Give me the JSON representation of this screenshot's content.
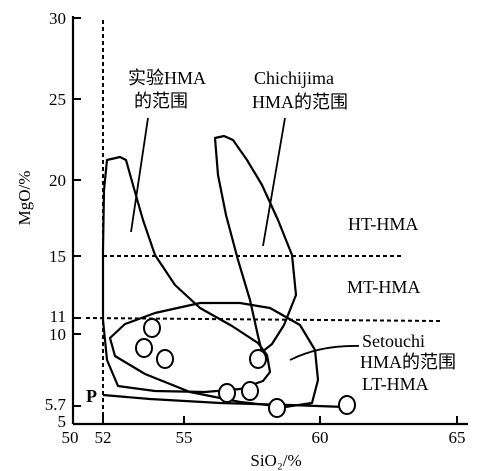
{
  "axes": {
    "xlabel": "SiO₂/%",
    "ylabel": "MgO/%",
    "x_ticks": [
      "50",
      "52",
      "55",
      "60",
      "65"
    ],
    "y_ticks": [
      "30",
      "25",
      "20",
      "15",
      "11",
      "10",
      "5.7",
      "5"
    ]
  },
  "labels": {
    "exp_line1": "实验HMA",
    "exp_line2": "的范围",
    "chichi_line1": "Chichijima",
    "chichi_line2": "HMA的范围",
    "ht": "HT-HMA",
    "mt": "MT-HMA",
    "set_line1": "Setouchi",
    "set_line2": "HMA的范围",
    "lt": "LT-HMA",
    "p": "P"
  }
}
